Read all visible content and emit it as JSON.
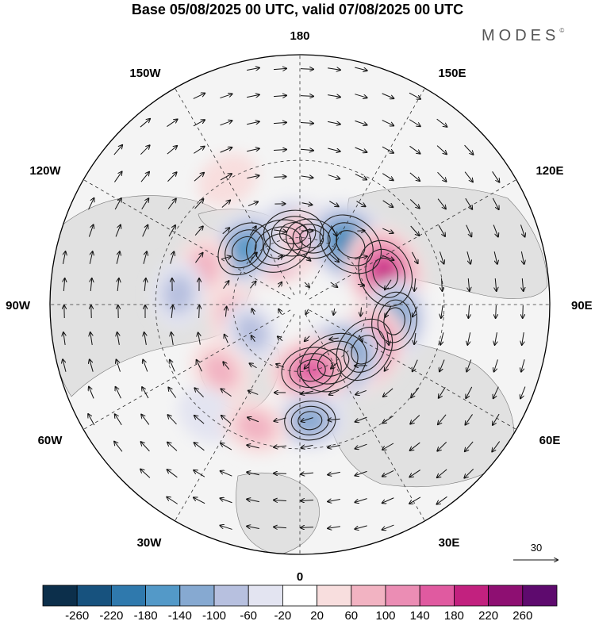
{
  "title": "Base 05/08/2025 00 UTC, valid 07/08/2025 00 UTC",
  "brand": "MODES",
  "brand_mark": "©",
  "wind_reference": {
    "value": 30,
    "label": "30"
  },
  "longitude_labels": {
    "top": "180",
    "bottom": "0",
    "left": "90W",
    "right": "90E",
    "upper_left_1": "150W",
    "upper_left_2": "120W",
    "upper_right_1": "150E",
    "upper_right_2": "120E",
    "lower_left_1": "60W",
    "lower_left_2": "30W",
    "lower_right_1": "60E",
    "lower_right_2": "30E"
  },
  "colors": {
    "neg_strong": "#1d5e8c",
    "neg": "#4a8dbd",
    "neg_light": "#c6cfe5",
    "neg_faint": "#e3e4f1",
    "pos_faint": "#f8dede",
    "pos_light": "#f2b3c2",
    "pos": "#e56fa6",
    "pos_strong": "#c2217f",
    "land": "#dcdcdc",
    "ocean": "#f2f2f2"
  },
  "chart_data": {
    "type": "heatmap",
    "title": "Base 05/08/2025 00 UTC, valid 07/08/2025 00 UTC",
    "projection": "north polar stereographic",
    "colorbar": {
      "ticks": [
        -260,
        -220,
        -180,
        -140,
        -100,
        -60,
        -20,
        20,
        60,
        100,
        140,
        180,
        220,
        260
      ],
      "tick_labels": [
        "-260",
        "-220",
        "-180",
        "-140",
        "-100",
        "-60",
        "-20",
        "20",
        "60",
        "100",
        "140",
        "180",
        "220",
        "260"
      ],
      "colors": [
        "#0c2f4b",
        "#17527e",
        "#2f79ad",
        "#5399c8",
        "#86a9d1",
        "#b7c0df",
        "#e3e4f1",
        "#ffffff",
        "#f8dede",
        "#f2b3c2",
        "#eb8db4",
        "#e05aa0",
        "#c2217f",
        "#8e0f72",
        "#5e0a6e"
      ]
    },
    "anomaly_centers": [
      {
        "id": "pos-160W",
        "lon": -160,
        "lat": 62,
        "value": 190
      },
      {
        "id": "neg-175W",
        "lon": -175,
        "lat": 58,
        "value": -150
      },
      {
        "id": "pos-170E",
        "lon": 170,
        "lat": 60,
        "value": 90
      },
      {
        "id": "neg-140E",
        "lon": 140,
        "lat": 55,
        "value": -200
      },
      {
        "id": "pos-110E",
        "lon": 110,
        "lat": 50,
        "value": 200
      },
      {
        "id": "neg-80E",
        "lon": 80,
        "lat": 48,
        "value": -140
      },
      {
        "id": "pos-55E",
        "lon": 55,
        "lat": 55,
        "value": 190
      },
      {
        "id": "neg-30E",
        "lon": 30,
        "lat": 60,
        "value": -220
      },
      {
        "id": "pos-10E",
        "lon": 10,
        "lat": 60,
        "value": 150
      },
      {
        "id": "neg-5E",
        "lon": 5,
        "lat": 40,
        "value": -90
      },
      {
        "id": "neg-135W",
        "lon": -135,
        "lat": 55,
        "value": -140
      },
      {
        "id": "pos-110W",
        "lon": -110,
        "lat": 45,
        "value": 70
      },
      {
        "id": "neg-95W",
        "lon": -95,
        "lat": 38,
        "value": -60
      },
      {
        "id": "pos-80W",
        "lon": -80,
        "lat": 60,
        "value": 60
      },
      {
        "id": "neg-60W",
        "lon": -60,
        "lat": 65,
        "value": -50
      },
      {
        "id": "pos-50W",
        "lon": -50,
        "lat": 45,
        "value": 60
      },
      {
        "id": "neg-40W",
        "lon": -40,
        "lat": 30,
        "value": -40
      },
      {
        "id": "pos-20W",
        "lon": -20,
        "lat": 35,
        "value": 60
      },
      {
        "id": "pos-150W-sub",
        "lon": -150,
        "lat": 30,
        "value": 40
      }
    ]
  }
}
